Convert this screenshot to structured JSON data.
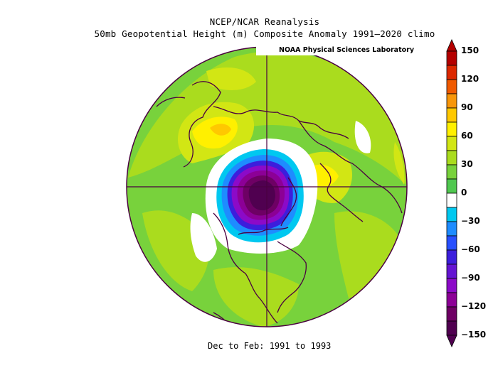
{
  "header": {
    "title": "NCEP/NCAR Reanalysis",
    "subtitle": "50mb Geopotential Height (m) Composite Anomaly 1991–2020 climo",
    "credit": "NOAA Physical Sciences Laboratory"
  },
  "footer": {
    "period": "Dec to Feb: 1991 to 1993"
  },
  "colorbar": {
    "labels": [
      "150",
      "120",
      "90",
      "60",
      "30",
      "0",
      "−30",
      "−60",
      "−90",
      "−120",
      "−150"
    ],
    "levels": [
      150,
      135,
      120,
      105,
      90,
      75,
      60,
      45,
      30,
      15,
      -15,
      -30,
      -45,
      -60,
      -75,
      -90,
      -105,
      -120,
      -135,
      -150
    ],
    "colors": [
      "#b40000",
      "#dc2800",
      "#f05a00",
      "#f8960a",
      "#ffc800",
      "#fff000",
      "#d2e614",
      "#aadc1e",
      "#78d23c",
      "#50c850",
      "#ffffff",
      "#00c8f0",
      "#1e8cff",
      "#2850ff",
      "#3c1edc",
      "#6414d2",
      "#8c0ac8",
      "#8c0096",
      "#6e0064",
      "#500050"
    ]
  },
  "chart_data": {
    "type": "heatmap",
    "title": "50mb Geopotential Height (m) Composite Anomaly 1991–2020 climo",
    "projection": "north polar stereographic",
    "variable": "50mb Geopotential Height anomaly (m)",
    "period": "Dec to Feb: 1991 to 1993",
    "value_range": [
      -150,
      150
    ],
    "contour_interval": 15,
    "features": [
      {
        "region": "North Pole / Arctic (centered toward Canadian Arctic)",
        "anomaly_min": -150
      },
      {
        "region": "Surrounding polar ring",
        "anomaly_range": [
          -75,
          -15
        ]
      },
      {
        "region": "Eastern Siberia / Bering",
        "anomaly_range": [
          45,
          75
        ]
      },
      {
        "region": "Europe / Western Russia",
        "anomaly_range": [
          45,
          75
        ]
      },
      {
        "region": "North Atlantic / Eastern North America",
        "anomaly_range": [
          -15,
          15
        ]
      },
      {
        "region": "Mid-latitudes and tropics",
        "anomaly_range": [
          15,
          45
        ]
      }
    ]
  }
}
